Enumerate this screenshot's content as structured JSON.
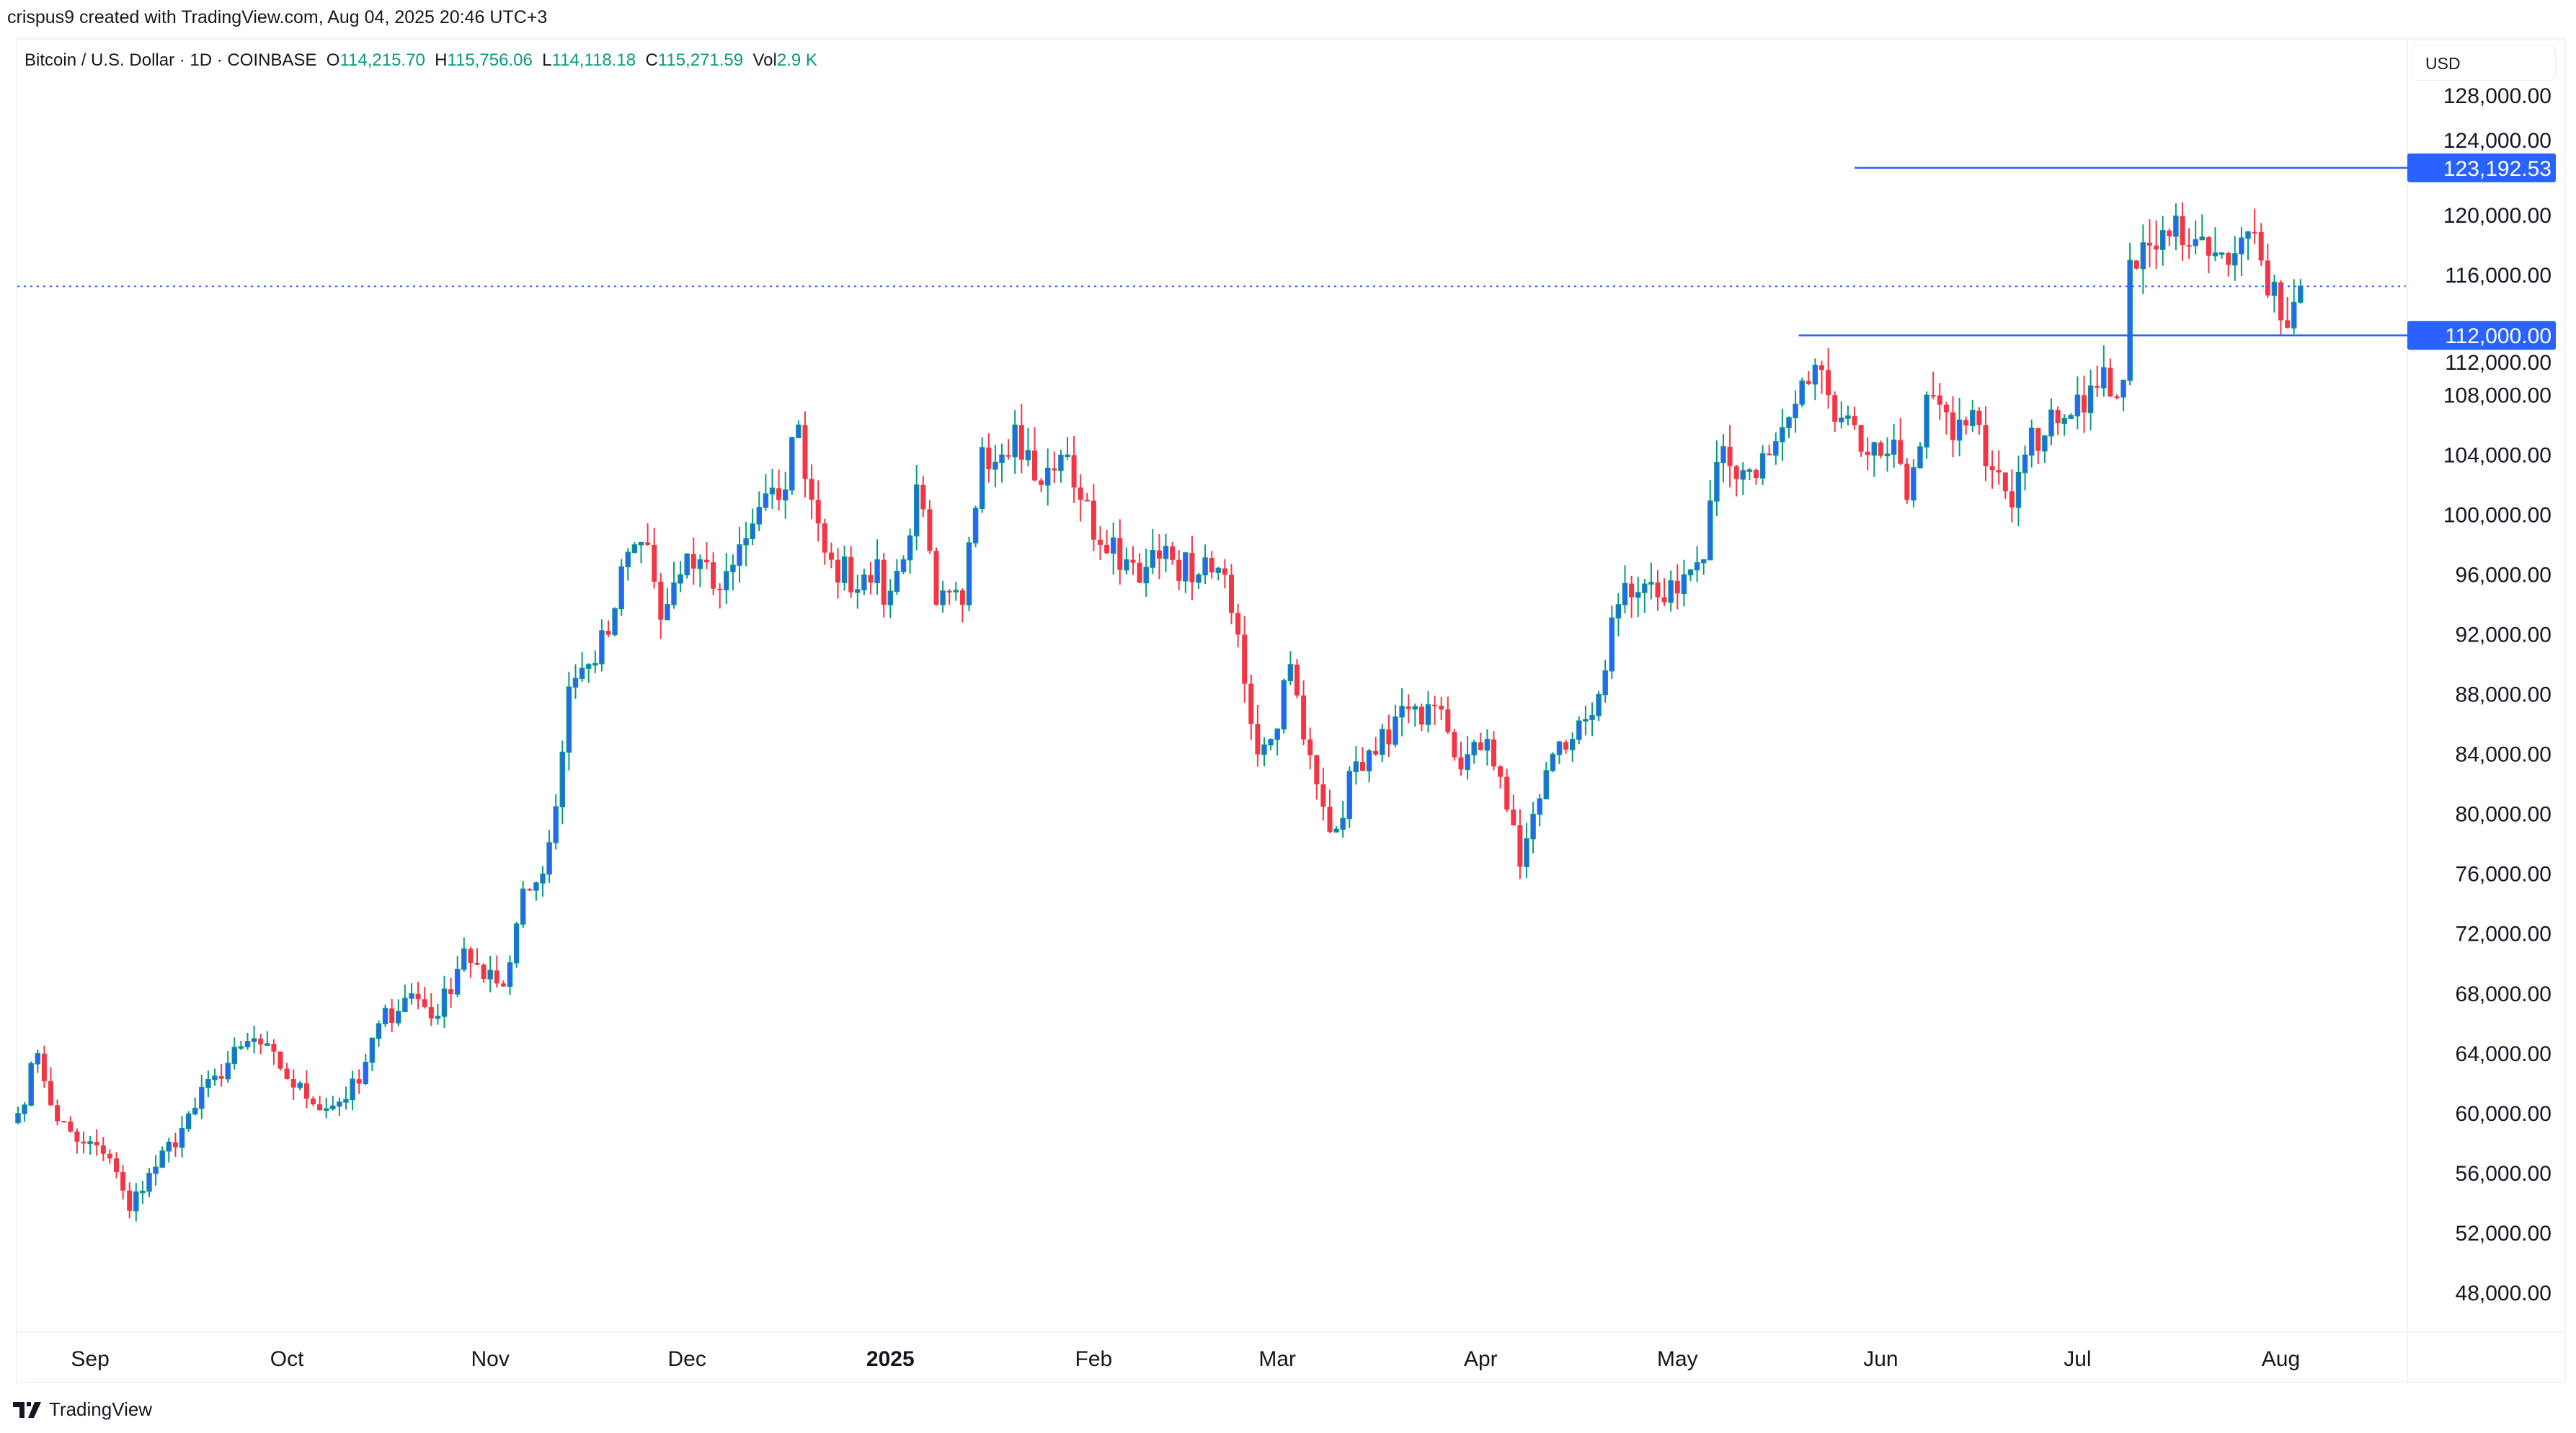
{
  "credit": "crispus9 created with TradingView.com, Aug 04, 2025 20:46 UTC+3",
  "legend": {
    "symbol": "Bitcoin / U.S. Dollar · 1D · COINBASE",
    "o_label": "O",
    "o": "114,215.70",
    "h_label": "H",
    "h": "115,756.06",
    "l_label": "L",
    "l": "114,118.18",
    "c_label": "C",
    "c": "115,271.59",
    "vol_label": "Vol",
    "vol": "2.9 K"
  },
  "currency": "USD",
  "brand": "TradingView",
  "colors": {
    "up_border": "#089981",
    "up_fill": "#2962ff",
    "down": "#f23645",
    "line": "#2962ff"
  },
  "chart_data": {
    "type": "candlestick",
    "title": "Bitcoin / U.S. Dollar · 1D · COINBASE",
    "ylim": [
      46000,
      130000
    ],
    "y_ticks": [
      128000,
      124000,
      120000,
      116000,
      112000,
      108000,
      104000,
      100000,
      96000,
      92000,
      88000,
      84000,
      80000,
      76000,
      72000,
      68000,
      64000,
      60000,
      56000,
      52000,
      48000
    ],
    "y_tick_labels": [
      "128,000.00",
      "124,000.00",
      "120,000.00",
      "116,000.00",
      "112,000.00",
      "108,000.00",
      "104,000.00",
      "100,000.00",
      "96,000.00",
      "92,000.00",
      "88,000.00",
      "84,000.00",
      "80,000.00",
      "76,000.00",
      "72,000.00",
      "68,000.00",
      "64,000.00",
      "60,000.00",
      "56,000.00",
      "52,000.00",
      "48,000.00"
    ],
    "x_start": "2024-08-21",
    "days": 349,
    "x_ticks": [
      {
        "label": "Sep",
        "day": 11
      },
      {
        "label": "Oct",
        "day": 41
      },
      {
        "label": "Nov",
        "day": 72
      },
      {
        "label": "Dec",
        "day": 102
      },
      {
        "label": "2025",
        "day": 133,
        "bold": true
      },
      {
        "label": "Feb",
        "day": 164
      },
      {
        "label": "Mar",
        "day": 192
      },
      {
        "label": "Apr",
        "day": 223
      },
      {
        "label": "May",
        "day": 253
      },
      {
        "label": "Jun",
        "day": 284
      },
      {
        "label": "Jul",
        "day": 314
      },
      {
        "label": "Aug",
        "day": 345
      }
    ],
    "close_keypoints": [
      [
        0,
        60
      ],
      [
        3,
        64
      ],
      [
        6,
        59.5
      ],
      [
        10,
        58
      ],
      [
        14,
        57
      ],
      [
        17,
        53.5
      ],
      [
        20,
        56
      ],
      [
        25,
        59
      ],
      [
        30,
        62.5
      ],
      [
        36,
        65
      ],
      [
        40,
        63
      ],
      [
        44,
        61
      ],
      [
        48,
        60.5
      ],
      [
        52,
        62
      ],
      [
        55,
        66
      ],
      [
        60,
        68
      ],
      [
        64,
        66.5
      ],
      [
        68,
        71
      ],
      [
        71,
        69
      ],
      [
        74,
        68.5
      ],
      [
        77,
        75
      ],
      [
        80,
        76
      ],
      [
        82,
        80.5
      ],
      [
        84,
        88.5
      ],
      [
        87,
        90
      ],
      [
        90,
        92
      ],
      [
        93,
        97.5
      ],
      [
        96,
        98
      ],
      [
        98,
        93
      ],
      [
        101,
        96
      ],
      [
        104,
        97
      ],
      [
        107,
        95
      ],
      [
        110,
        98
      ],
      [
        113,
        100.5
      ],
      [
        116,
        101
      ],
      [
        119,
        106
      ],
      [
        121,
        101
      ],
      [
        124,
        97
      ],
      [
        128,
        95
      ],
      [
        131,
        97
      ],
      [
        132,
        94
      ],
      [
        135,
        97
      ],
      [
        137,
        102
      ],
      [
        140,
        94
      ],
      [
        144,
        94
      ],
      [
        147,
        104.5
      ],
      [
        150,
        104
      ],
      [
        152,
        106
      ],
      [
        156,
        102
      ],
      [
        160,
        104
      ],
      [
        162,
        101
      ],
      [
        165,
        98
      ],
      [
        169,
        97
      ],
      [
        172,
        96.5
      ],
      [
        176,
        97
      ],
      [
        180,
        96
      ],
      [
        184,
        96
      ],
      [
        186,
        92
      ],
      [
        189,
        84
      ],
      [
        191,
        85
      ],
      [
        194,
        90
      ],
      [
        196,
        85
      ],
      [
        199,
        80.5
      ],
      [
        201,
        79
      ],
      [
        204,
        83.5
      ],
      [
        207,
        84
      ],
      [
        210,
        86.5
      ],
      [
        214,
        86
      ],
      [
        217,
        87
      ],
      [
        220,
        83
      ],
      [
        224,
        85
      ],
      [
        226,
        82.5
      ],
      [
        229,
        76.5
      ],
      [
        231,
        80
      ],
      [
        234,
        84
      ],
      [
        237,
        85
      ],
      [
        241,
        88
      ],
      [
        244,
        94
      ],
      [
        246,
        94.5
      ],
      [
        250,
        94.5
      ],
      [
        254,
        96
      ],
      [
        257,
        97
      ],
      [
        259,
        103.5
      ],
      [
        264,
        103
      ],
      [
        267,
        104
      ],
      [
        270,
        106.5
      ],
      [
        274,
        110
      ],
      [
        276,
        108
      ],
      [
        280,
        106
      ],
      [
        282,
        104
      ],
      [
        286,
        105
      ],
      [
        288,
        101
      ],
      [
        291,
        108
      ],
      [
        295,
        105
      ],
      [
        299,
        106
      ],
      [
        301,
        103
      ],
      [
        304,
        100.5
      ],
      [
        306,
        104
      ],
      [
        310,
        107
      ],
      [
        314,
        108
      ],
      [
        317,
        108.5
      ],
      [
        321,
        109
      ],
      [
        322,
        117
      ],
      [
        325,
        118
      ],
      [
        327,
        119
      ],
      [
        331,
        118
      ],
      [
        335,
        117.5
      ],
      [
        339,
        118.5
      ],
      [
        342,
        117
      ],
      [
        345,
        113
      ],
      [
        346,
        112.5
      ],
      [
        347,
        114.2
      ],
      [
        348,
        115.27
      ]
    ],
    "last_candle": {
      "open": 114215.7,
      "high": 115756.06,
      "low": 114118.18,
      "close": 115271.59
    },
    "price_lines": [
      {
        "label": "123,192.53",
        "value": 123192.53,
        "from_day": 280
      },
      {
        "label": "112,000.00",
        "value": 112000,
        "from_day": 271.5
      }
    ],
    "last_price": 115271.59
  }
}
